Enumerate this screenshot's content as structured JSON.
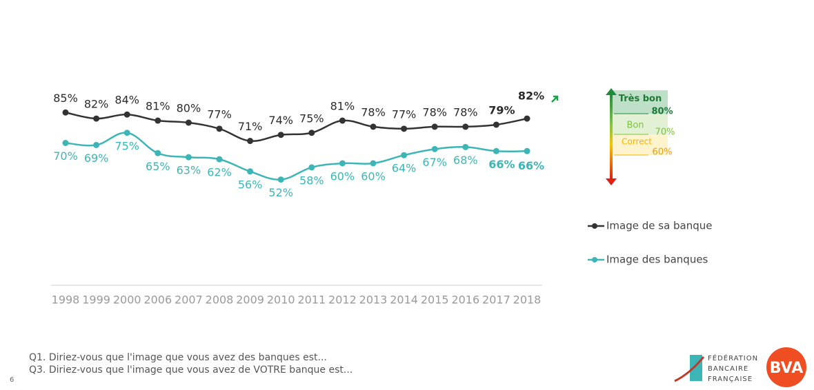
{
  "chart_data": {
    "type": "line",
    "categories": [
      "1998",
      "1999",
      "2000",
      "2006",
      "2007",
      "2008",
      "2009",
      "2010",
      "2011",
      "2012",
      "2013",
      "2014",
      "2015",
      "2016",
      "2017",
      "2018"
    ],
    "series": [
      {
        "name": "Image de sa banque",
        "color": "#333333",
        "values": [
          85,
          82,
          84,
          81,
          80,
          77,
          71,
          74,
          75,
          81,
          78,
          77,
          78,
          78,
          79,
          82
        ],
        "value_labels": [
          "85%",
          "82%",
          "84%",
          "81%",
          "80%",
          "77%",
          "71%",
          "74%",
          "75%",
          "81%",
          "78%",
          "77%",
          "78%",
          "78%",
          "79%",
          "82%"
        ]
      },
      {
        "name": "Image des banques",
        "color": "#3cb5b7",
        "values": [
          70,
          69,
          75,
          65,
          63,
          62,
          56,
          52,
          58,
          60,
          60,
          64,
          67,
          68,
          66,
          66
        ],
        "value_labels": [
          "70%",
          "69%",
          "75%",
          "65%",
          "63%",
          "62%",
          "56%",
          "52%",
          "58%",
          "60%",
          "60%",
          "64%",
          "67%",
          "68%",
          "66%",
          "66%"
        ]
      }
    ],
    "ylim": [
      0,
      100
    ],
    "grid": false,
    "legend": "right"
  },
  "gauge": [
    {
      "label": "Très bon",
      "threshold": "80%"
    },
    {
      "label": "Bon",
      "threshold": "70%"
    },
    {
      "label": "Correct",
      "threshold": "60%"
    }
  ],
  "footnotes": [
    "Q1. Diriez-vous que l'image que vous avez des banques est...",
    "Q3. Diriez-vous que l'image que vous avez de VOTRE banque est..."
  ],
  "page_number": "6",
  "logos": {
    "fbf": [
      "FÉDÉRATION",
      "BANCAIRE",
      "FRANÇAISE"
    ],
    "bva": "BVA"
  }
}
